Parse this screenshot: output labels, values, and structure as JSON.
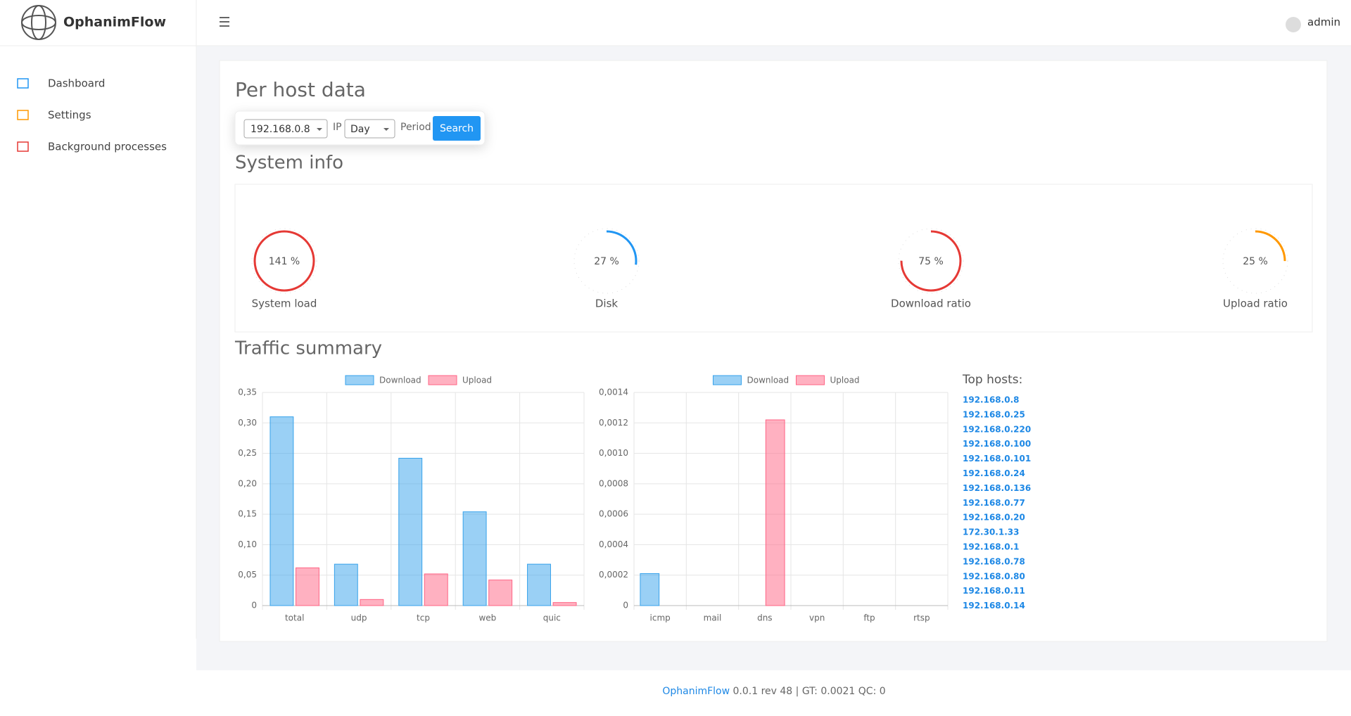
{
  "header": {
    "brand": "OphanimFlow",
    "user": "admin"
  },
  "sidebar": {
    "items": [
      "Dashboard",
      "Settings",
      "Background processes"
    ]
  },
  "page": {
    "title": "Per host data",
    "form": {
      "ip": "192.168.0.8",
      "ip_label": "IP",
      "period": "Day",
      "period_label": "Period",
      "button": "Search"
    },
    "system_info": {
      "title": "System info",
      "gauges": [
        {
          "label": "System load",
          "value": 141,
          "value_label": "141 %",
          "color": "#e53935"
        },
        {
          "label": "Disk",
          "value": 27,
          "value_label": "27 %",
          "color": "#2196f3"
        },
        {
          "label": "Download ratio",
          "value": 75,
          "value_label": "75 %",
          "color": "#e53935"
        },
        {
          "label": "Upload ratio",
          "value": 25,
          "value_label": "25 %",
          "color": "#ff9800"
        }
      ]
    },
    "traffic_title": "Traffic summary",
    "top_hosts": {
      "title": "Top hosts:",
      "hosts": [
        "192.168.0.8",
        "192.168.0.25",
        "192.168.0.220",
        "192.168.0.100",
        "192.168.0.101",
        "192.168.0.24",
        "192.168.0.136",
        "192.168.0.77",
        "192.168.0.20",
        "172.30.1.33",
        "192.168.0.1",
        "192.168.0.78",
        "192.168.0.80",
        "192.168.0.11",
        "192.168.0.14"
      ]
    }
  },
  "chart_data": [
    {
      "type": "bar",
      "categories": [
        "total",
        "udp",
        "tcp",
        "web",
        "quic"
      ],
      "series": [
        {
          "name": "Download",
          "color": "#36a2eb",
          "values": [
            0.31,
            0.068,
            0.242,
            0.154,
            0.068
          ]
        },
        {
          "name": "Upload",
          "color": "#ff6384",
          "values": [
            0.062,
            0.01,
            0.052,
            0.042,
            0.005
          ]
        }
      ],
      "ylim": [
        0,
        0.35
      ],
      "yticks": [
        0,
        {
          "value": 0.05,
          "label": "0,05"
        },
        {
          "value": 0.1,
          "label": "0,10"
        },
        {
          "value": 0.15,
          "label": "0,15"
        },
        {
          "value": 0.2,
          "label": "0,20"
        },
        {
          "value": 0.25,
          "label": "0,25"
        },
        {
          "value": 0.3,
          "label": "0,30"
        },
        {
          "value": 0.35,
          "label": "0,35"
        }
      ],
      "grid": true
    },
    {
      "type": "bar",
      "categories": [
        "icmp",
        "mail",
        "dns",
        "vpn",
        "ftp",
        "rtsp"
      ],
      "series": [
        {
          "name": "Download",
          "color": "#36a2eb",
          "values": [
            0.00021,
            0,
            0,
            0,
            0,
            0
          ]
        },
        {
          "name": "Upload",
          "color": "#ff6384",
          "values": [
            0,
            0,
            0.00122,
            0,
            0,
            0
          ]
        }
      ],
      "ylim": [
        0,
        0.0014
      ],
      "yticks": [
        0,
        {
          "value": 0.0002,
          "label": "0,0002"
        },
        {
          "value": 0.0004,
          "label": "0,0004"
        },
        {
          "value": 0.0006,
          "label": "0,0006"
        },
        {
          "value": 0.0008,
          "label": "0,0008"
        },
        {
          "value": 0.001,
          "label": "0,0010"
        },
        {
          "value": 0.0012,
          "label": "0,0012"
        },
        {
          "value": 0.0014,
          "label": "0,0014"
        }
      ],
      "grid": true
    }
  ],
  "footer": {
    "brand": "OphanimFlow",
    "info": " 0.0.1 rev 48 | GT: 0.0021 QC: 0"
  }
}
